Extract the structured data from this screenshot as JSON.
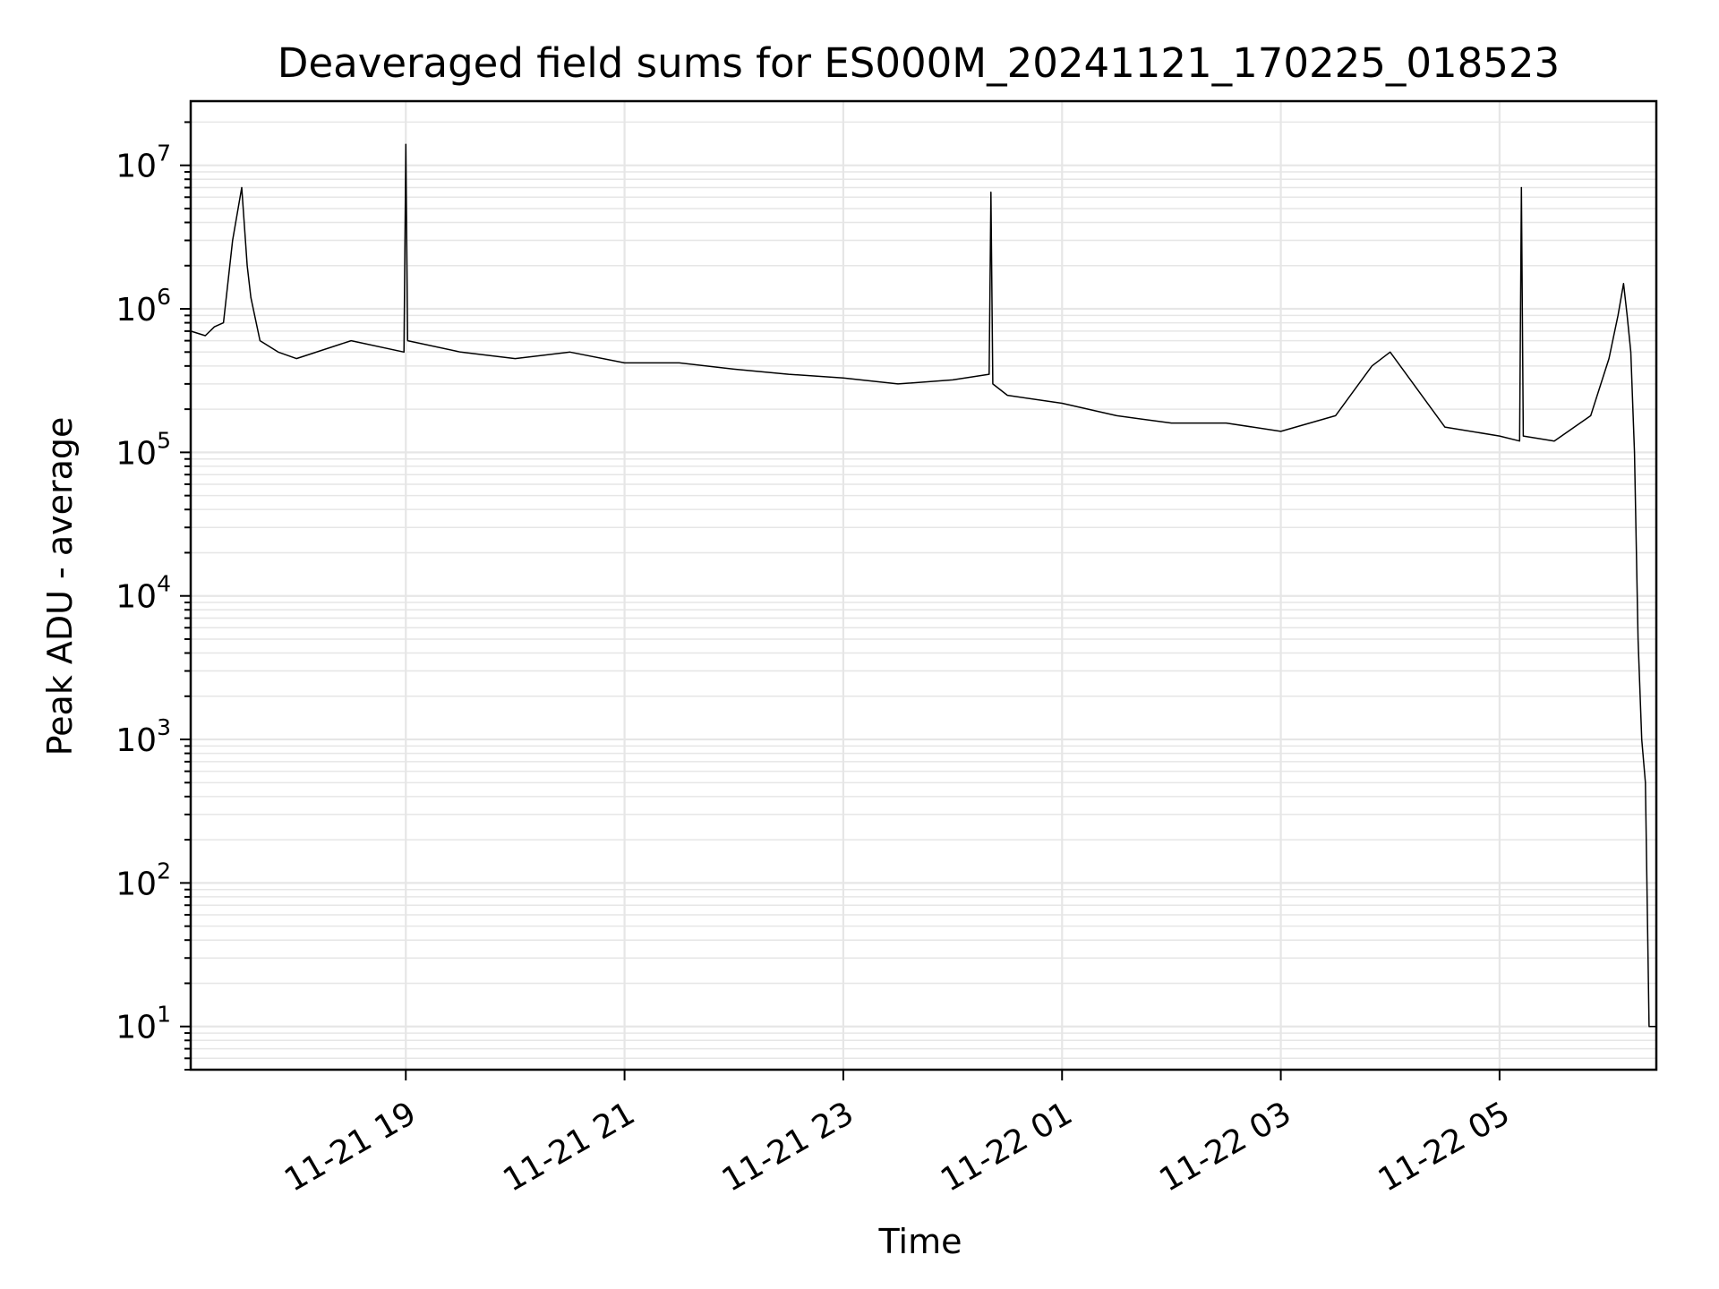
{
  "chart_data": {
    "type": "line",
    "title": "Deaveraged field sums for ES000M_20241121_170225_018523",
    "xlabel": "Time",
    "ylabel": "Peak ADU - average",
    "yscale": "log",
    "ylim": [
      5,
      28000000.0
    ],
    "xlim": [
      "2024-11-21 17:02",
      "2024-11-22 06:26"
    ],
    "x_ticks": [
      {
        "value": "2024-11-21 19:00",
        "label": "11-21 19"
      },
      {
        "value": "2024-11-21 21:00",
        "label": "11-21 21"
      },
      {
        "value": "2024-11-21 23:00",
        "label": "11-21 23"
      },
      {
        "value": "2024-11-22 01:00",
        "label": "11-22 01"
      },
      {
        "value": "2024-11-22 03:00",
        "label": "11-22 03"
      },
      {
        "value": "2024-11-22 05:00",
        "label": "11-22 05"
      }
    ],
    "y_ticks": [
      {
        "value": 10,
        "base": "10",
        "exp": "1"
      },
      {
        "value": 100,
        "base": "10",
        "exp": "2"
      },
      {
        "value": 1000,
        "base": "10",
        "exp": "3"
      },
      {
        "value": 10000,
        "base": "10",
        "exp": "4"
      },
      {
        "value": 100000,
        "base": "10",
        "exp": "5"
      },
      {
        "value": 1000000,
        "base": "10",
        "exp": "6"
      },
      {
        "value": 10000000,
        "base": "10",
        "exp": "7"
      }
    ],
    "grid": true,
    "line_color": "#000000",
    "grid_color": "#e6e6e6",
    "series": [
      {
        "x": [
          "2024-11-21 17:02",
          "2024-11-21 17:10",
          "2024-11-21 17:15",
          "2024-11-21 17:20",
          "2024-11-21 17:25",
          "2024-11-21 17:30",
          "2024-11-21 17:33",
          "2024-11-21 17:35",
          "2024-11-21 17:40",
          "2024-11-21 17:50",
          "2024-11-21 18:00",
          "2024-11-21 18:30",
          "2024-11-21 18:59",
          "2024-11-21 19:00",
          "2024-11-21 19:01",
          "2024-11-21 19:30",
          "2024-11-21 20:00",
          "2024-11-21 20:30",
          "2024-11-21 21:00",
          "2024-11-21 21:30",
          "2024-11-21 22:00",
          "2024-11-21 22:30",
          "2024-11-21 23:00",
          "2024-11-21 23:30",
          "2024-11-22 00:00",
          "2024-11-22 00:20",
          "2024-11-22 00:21",
          "2024-11-22 00:22",
          "2024-11-22 00:30",
          "2024-11-22 01:00",
          "2024-11-22 01:30",
          "2024-11-22 02:00",
          "2024-11-22 02:30",
          "2024-11-22 03:00",
          "2024-11-22 03:30",
          "2024-11-22 03:50",
          "2024-11-22 04:00",
          "2024-11-22 04:30",
          "2024-11-22 05:00",
          "2024-11-22 05:11",
          "2024-11-22 05:12",
          "2024-11-22 05:13",
          "2024-11-22 05:30",
          "2024-11-22 05:50",
          "2024-11-22 06:00",
          "2024-11-22 06:05",
          "2024-11-22 06:08",
          "2024-11-22 06:10",
          "2024-11-22 06:12",
          "2024-11-22 06:14",
          "2024-11-22 06:16",
          "2024-11-22 06:18",
          "2024-11-22 06:20",
          "2024-11-22 06:22",
          "2024-11-22 06:24",
          "2024-11-22 06:26"
        ],
        "y": [
          700000,
          650000,
          750000,
          800000,
          3000000,
          7000000,
          2000000,
          1200000,
          600000,
          500000,
          450000,
          600000,
          500000,
          14000000,
          600000,
          500000,
          450000,
          500000,
          420000,
          420000,
          380000,
          350000,
          330000,
          300000,
          320000,
          350000,
          6500000,
          300000,
          250000,
          220000,
          180000,
          160000,
          160000,
          140000,
          180000,
          400000,
          500000,
          150000,
          130000,
          120000,
          7000000,
          130000,
          120000,
          180000,
          450000,
          900000,
          1500000,
          900000,
          500000,
          100000,
          5000,
          1000,
          500,
          10,
          10,
          10
        ]
      }
    ]
  }
}
